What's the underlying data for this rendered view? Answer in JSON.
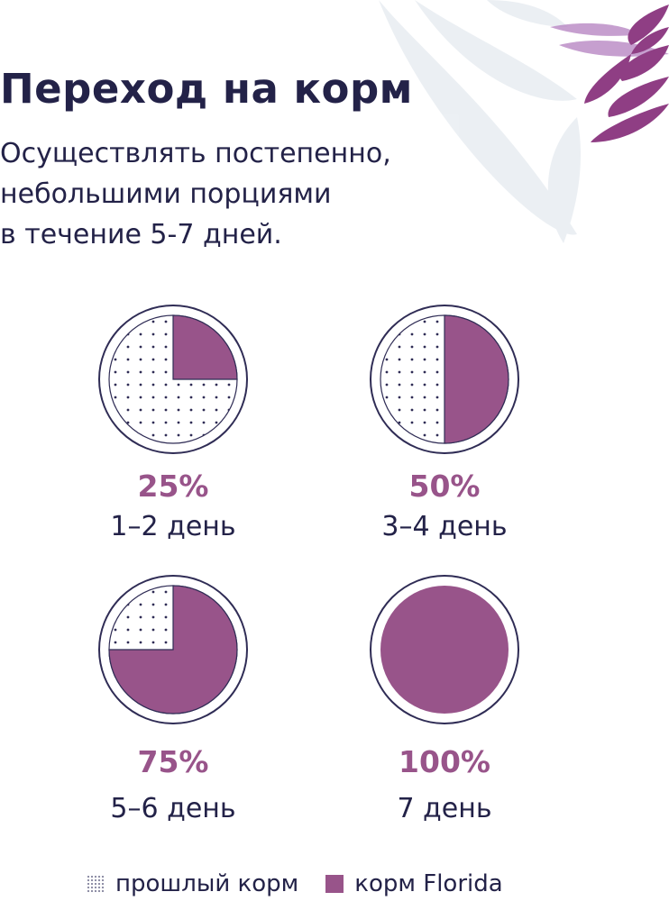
{
  "header": {
    "title": "Переход на корм",
    "subtitle_lines": [
      "Осуществлять постепенно,",
      "небольшими порциями",
      "в течение 5-7 дней."
    ]
  },
  "colors": {
    "new_food": "#98548a",
    "ring": "#2f2c55",
    "text": "#232248",
    "dots": "#2f2c55"
  },
  "icons": {
    "old_food": "dotted-square-icon",
    "new_food": "purple-square-icon"
  },
  "chart_data": {
    "type": "pie",
    "title": "",
    "unit": "%",
    "charts": [
      {
        "value": 25,
        "value_label": "25%",
        "category": "1–2 день"
      },
      {
        "value": 50,
        "value_label": "50%",
        "category": "3–4 день"
      },
      {
        "value": 75,
        "value_label": "75%",
        "category": "5–6 день"
      },
      {
        "value": 100,
        "value_label": "100%",
        "category": "7 день"
      }
    ],
    "series": [
      {
        "name": "прошлый корм",
        "pattern": "dots"
      },
      {
        "name": "корм Florida",
        "color": "#98548a"
      }
    ],
    "legend": {
      "placement": "bottom"
    }
  }
}
